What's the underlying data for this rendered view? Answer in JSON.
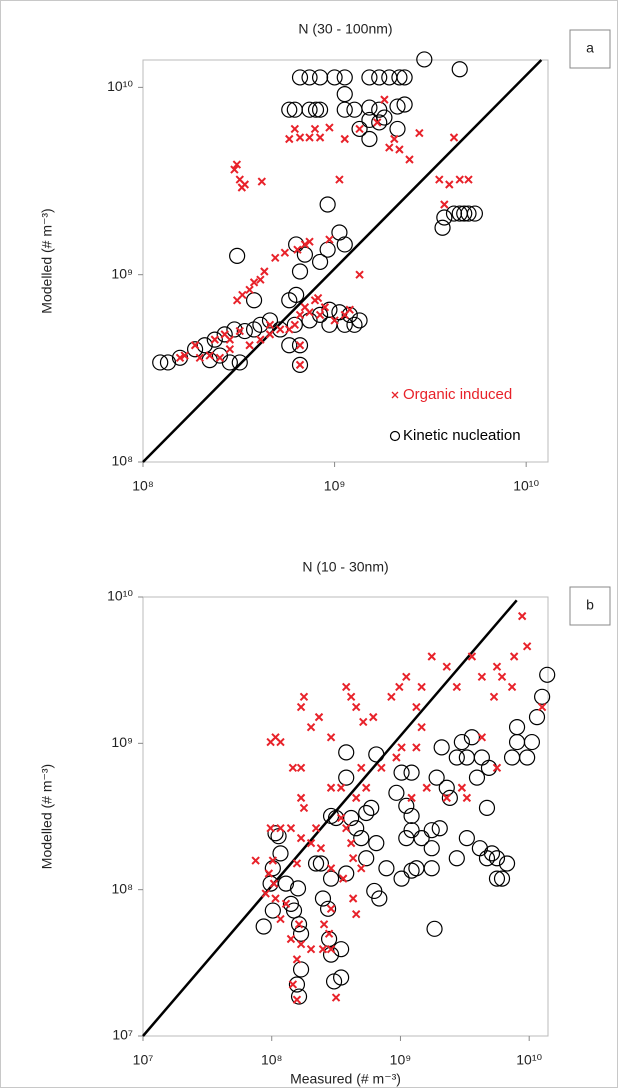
{
  "chart_data": [
    {
      "type": "scatter",
      "title": "N (30 - 100nm)",
      "panel_label": "a",
      "ylabel": "Modelled (# m⁻³)",
      "log_x": true,
      "log_y": true,
      "grid": false,
      "legend": "lower right",
      "xlim": [
        100000000,
        13000000000
      ],
      "ylim": [
        100000000,
        14000000000
      ],
      "xticks": [
        {
          "value": 100000000,
          "label": "10⁸"
        },
        {
          "value": 1000000000,
          "label": "10⁹"
        },
        {
          "value": 10000000000,
          "label": "10¹⁰"
        }
      ],
      "yticks": [
        {
          "value": 100000000,
          "label": "10⁸"
        },
        {
          "value": 1000000000,
          "label": "10⁹"
        },
        {
          "value": 10000000000,
          "label": "10¹⁰"
        }
      ],
      "reference_line": {
        "x": [
          100000000,
          12000000000
        ],
        "y": [
          100000000,
          14000000000
        ]
      },
      "series": [
        {
          "name": "Organic induced",
          "color": "#e8222a",
          "marker": "x",
          "x": [
            300000000.0,
            309000000.0,
            320000000.0,
            340000000.0,
            328000000.0,
            417000000.0,
            310000000.0,
            330000000.0,
            360000000.0,
            380000000.0,
            410000000.0,
            430000000.0,
            490000000.0,
            550000000.0,
            640000000.0,
            700000000.0,
            740000000.0,
            940000000.0,
            1350000000.0,
            660000000.0,
            740000000.0,
            840000000.0,
            580000000.0,
            620000000.0,
            790000000.0,
            940000000.0,
            1130000000.0,
            1350000000.0,
            1670000000.0,
            1820000000.0,
            2050000000.0,
            2180000000.0,
            1930000000.0,
            1060000000.0,
            2460000000.0,
            2770000000.0,
            4200000000.0,
            3520000000.0,
            3740000000.0,
            3970000000.0,
            4500000000.0,
            5000000000.0,
            237000000.0,
            267000000.0,
            284000000.0,
            320000000.0,
            360000000.0,
            410000000.0,
            460000000.0,
            520000000.0,
            580000000.0,
            620000000.0,
            660000000.0,
            700000000.0,
            740000000.0,
            840000000.0,
            1000000000.0,
            284000000.0,
            252000000.0,
            198000000.0,
            156000000.0,
            165000000.0,
            187000000.0,
            460000000.0,
            660000000.0,
            790000000.0,
            820000000.0,
            890000000.0,
            1130000000.0,
            1200000000.0,
            223000000.0,
            660000000.0
          ],
          "y": [
            3640000000.0,
            3870000000.0,
            3220000000.0,
            3030000000.0,
            2920000000.0,
            3140000000.0,
            730000000.0,
            780000000.0,
            830000000.0,
            910000000.0,
            940000000.0,
            1040000000.0,
            1230000000.0,
            1310000000.0,
            1360000000.0,
            1450000000.0,
            1500000000.0,
            1540000000.0,
            1000000000.0,
            5400000000.0,
            5400000000.0,
            5400000000.0,
            5300000000.0,
            6000000000.0,
            6000000000.0,
            6100000000.0,
            5300000000.0,
            6000000000.0,
            6500000000.0,
            8600000000.0,
            5300000000.0,
            4660000000.0,
            4770000000.0,
            3220000000.0,
            4120000000.0,
            5700000000.0,
            5400000000.0,
            3220000000.0,
            2370000000.0,
            3030000000.0,
            3220000000.0,
            3220000000.0,
            450000000.0,
            480000000.0,
            450000000.0,
            500000000.0,
            420000000.0,
            450000000.0,
            480000000.0,
            510000000.0,
            510000000.0,
            540000000.0,
            610000000.0,
            670000000.0,
            630000000.0,
            610000000.0,
            570000000.0,
            400000000.0,
            360000000.0,
            360000000.0,
            360000000.0,
            370000000.0,
            420000000.0,
            540000000.0,
            420000000.0,
            730000000.0,
            750000000.0,
            670000000.0,
            610000000.0,
            650000000.0,
            370000000.0,
            330000000.0
          ]
        },
        {
          "name": "Kinetic nucleation",
          "color": "#000000",
          "marker": "circle",
          "x": [
            123000000.0,
            135000000.0,
            156000000.0,
            187000000.0,
            210000000.0,
            237000000.0,
            252000000.0,
            284000000.0,
            320000000.0,
            223000000.0,
            267000000.0,
            300000000.0,
            340000000.0,
            380000000.0,
            410000000.0,
            460000000.0,
            520000000.0,
            580000000.0,
            660000000.0,
            620000000.0,
            740000000.0,
            840000000.0,
            940000000.0,
            1060000000.0,
            1200000000.0,
            1350000000.0,
            1270000000.0,
            1130000000.0,
            940000000.0,
            580000000.0,
            630000000.0,
            660000000.0,
            630000000.0,
            700000000.0,
            840000000.0,
            920000000.0,
            1060000000.0,
            1130000000.0,
            310000000.0,
            380000000.0,
            660000000.0,
            920000000.0,
            660000000.0,
            740000000.0,
            840000000.0,
            1000000000.0,
            1130000000.0,
            1520000000.0,
            1710000000.0,
            1930000000.0,
            2180000000.0,
            2320000000.0,
            580000000.0,
            620000000.0,
            740000000.0,
            800000000.0,
            840000000.0,
            1130000000.0,
            1520000000.0,
            1710000000.0,
            2130000000.0,
            1130000000.0,
            1270000000.0,
            1710000000.0,
            1820000000.0,
            2130000000.0,
            1520000000.0,
            1350000000.0,
            1520000000.0,
            2940000000.0,
            4500000000.0,
            3740000000.0,
            3660000000.0,
            4200000000.0,
            4500000000.0,
            4750000000.0,
            5000000000.0,
            5400000000.0,
            2320000000.0
          ],
          "y": [
            340000000.0,
            340000000.0,
            360000000.0,
            400000000.0,
            420000000.0,
            450000000.0,
            370000000.0,
            340000000.0,
            340000000.0,
            350000000.0,
            480000000.0,
            510000000.0,
            500000000.0,
            510000000.0,
            540000000.0,
            570000000.0,
            510000000.0,
            420000000.0,
            420000000.0,
            540000000.0,
            570000000.0,
            610000000.0,
            650000000.0,
            630000000.0,
            610000000.0,
            570000000.0,
            540000000.0,
            540000000.0,
            540000000.0,
            730000000.0,
            780000000.0,
            1040000000.0,
            1450000000.0,
            1280000000.0,
            1170000000.0,
            1360000000.0,
            1680000000.0,
            1450000000.0,
            1260000000.0,
            730000000.0,
            330000000.0,
            2370000000.0,
            11300000000.0,
            11300000000.0,
            11300000000.0,
            11300000000.0,
            11300000000.0,
            11300000000.0,
            11300000000.0,
            11300000000.0,
            11300000000.0,
            11300000000.0,
            7600000000.0,
            7600000000.0,
            7600000000.0,
            7600000000.0,
            7600000000.0,
            9200000000.0,
            7800000000.0,
            7600000000.0,
            7900000000.0,
            7600000000.0,
            7600000000.0,
            6500000000.0,
            6900000000.0,
            6000000000.0,
            5300000000.0,
            6000000000.0,
            6700000000.0,
            14100000000.0,
            12500000000.0,
            2020000000.0,
            1780000000.0,
            2120000000.0,
            2120000000.0,
            2120000000.0,
            2120000000.0,
            2120000000.0,
            8100000000.0
          ]
        }
      ]
    },
    {
      "type": "scatter",
      "title": "N (10 - 30nm)",
      "panel_label": "b",
      "ylabel": "Modelled (# m⁻³)",
      "xlabel": "Measured (# m⁻³)",
      "log_x": true,
      "log_y": true,
      "grid": false,
      "xlim": [
        10000000,
        14000000000
      ],
      "ylim": [
        10000000,
        10000000000
      ],
      "xticks": [
        {
          "value": 10000000,
          "label": "10⁷"
        },
        {
          "value": 100000000,
          "label": "10⁸"
        },
        {
          "value": 1000000000,
          "label": "10⁹"
        },
        {
          "value": 10000000000,
          "label": "10¹⁰"
        }
      ],
      "yticks": [
        {
          "value": 10000000,
          "label": "10⁷"
        },
        {
          "value": 100000000,
          "label": "10⁸"
        },
        {
          "value": 1000000000,
          "label": "10⁹"
        },
        {
          "value": 10000000000,
          "label": "10¹⁰"
        }
      ],
      "reference_line": {
        "x": [
          10000000,
          8000000000
        ],
        "y": [
          10000000,
          9500000000
        ]
      },
      "series": [
        {
          "color": "#e8222a",
          "marker": "x",
          "x": [
            89800000.0,
            95000000.0,
            102000000.0,
            104000000.0,
            107000000.0,
            117000000.0,
            129000000.0,
            141000000.0,
            157000000.0,
            169000000.0,
            163000000.0,
            157000000.0,
            146000000.0,
            202000000.0,
            250000000.0,
            289000000.0,
            279000000.0,
            289000000.0,
            255000000.0,
            316000000.0,
            98000000.0,
            107000000.0,
            117000000.0,
            146000000.0,
            169000000.0,
            169000000.0,
            178000000.0,
            202000000.0,
            233000000.0,
            289000000.0,
            379000000.0,
            414000000.0,
            453000000.0,
            514000000.0,
            615000000.0,
            850000000.0,
            980000000.0,
            1110000000.0,
            1330000000.0,
            1460000000.0,
            1750000000.0,
            2290000000.0,
            2740000000.0,
            3590000000.0,
            4290000000.0,
            5330000000.0,
            6150000000.0,
            7640000000.0,
            9640000000.0,
            8820000000.0,
            5620000000.0,
            7360000000.0,
            5620000000.0,
            4290000000.0,
            3280000000.0,
            2290000000.0,
            3000000000.0,
            1600000000.0,
            1220000000.0,
            1460000000.0,
            1330000000.0,
            1020000000.0,
            930000000.0,
            711000000.0,
            542000000.0,
            453000000.0,
            496000000.0,
            346000000.0,
            289000000.0,
            169000000.0,
            178000000.0,
            221000000.0,
            169000000.0,
            157000000.0,
            202000000.0,
            241000000.0,
            346000000.0,
            379000000.0,
            414000000.0,
            429000000.0,
            359000000.0,
            429000000.0,
            453000000.0,
            496000000.0,
            289000000.0,
            141000000.0,
            117000000.0,
            98000000.0,
            75000000.0,
            12600000000.0
          ],
          "y": [
            94000000.0,
            129000000.0,
            158000000.0,
            110000000.0,
            87000000.0,
            63000000.0,
            80000000.0,
            46000000.0,
            33400000.0,
            42400000.0,
            58000000.0,
            17700000.0,
            22500000.0,
            39200000.0,
            39200000.0,
            39200000.0,
            50000000.0,
            74000000.0,
            58000000.0,
            18300000.0,
            1020000000.0,
            1100000000.0,
            1020000000.0,
            680000000.0,
            680000000.0,
            1770000000.0,
            2080000000.0,
            1290000000.0,
            1510000000.0,
            1100000000.0,
            2430000000.0,
            2080000000.0,
            1770000000.0,
            1400000000.0,
            1510000000.0,
            2080000000.0,
            2430000000.0,
            2850000000.0,
            1770000000.0,
            2430000000.0,
            3920000000.0,
            3340000000.0,
            2430000000.0,
            3920000000.0,
            2850000000.0,
            2080000000.0,
            2850000000.0,
            3920000000.0,
            4600000000.0,
            7400000000.0,
            3340000000.0,
            2430000000.0,
            680000000.0,
            1100000000.0,
            424000000.0,
            424000000.0,
            497000000.0,
            497000000.0,
            424000000.0,
            1290000000.0,
            938000000.0,
            938000000.0,
            800000000.0,
            680000000.0,
            497000000.0,
            424000000.0,
            680000000.0,
            497000000.0,
            497000000.0,
            424000000.0,
            362000000.0,
            263000000.0,
            225000000.0,
            151000000.0,
            208000000.0,
            192000000.0,
            309000000.0,
            263000000.0,
            208000000.0,
            164000000.0,
            119000000.0,
            87000000.0,
            68000000.0,
            140000000.0,
            140000000.0,
            263000000.0,
            263000000.0,
            263000000.0,
            158000000.0,
            1770000000.0
          ]
        },
        {
          "color": "#000000",
          "marker": "circle",
          "x": [
            86600000.0,
            102000000.0,
            107000000.0,
            113000000.0,
            102000000.0,
            117000000.0,
            98000000.0,
            129000000.0,
            141000000.0,
            149000000.0,
            160000000.0,
            163000000.0,
            169000000.0,
            157000000.0,
            163000000.0,
            169000000.0,
            221000000.0,
            241000000.0,
            289000000.0,
            250000000.0,
            274000000.0,
            279000000.0,
            289000000.0,
            346000000.0,
            305000000.0,
            346000000.0,
            379000000.0,
            289000000.0,
            316000000.0,
            379000000.0,
            379000000.0,
            649000000.0,
            414000000.0,
            453000000.0,
            496000000.0,
            542000000.0,
            593000000.0,
            649000000.0,
            542000000.0,
            685000000.0,
            626000000.0,
            930000000.0,
            1020000000.0,
            1220000000.0,
            1110000000.0,
            1220000000.0,
            778000000.0,
            1020000000.0,
            1220000000.0,
            1110000000.0,
            1220000000.0,
            1460000000.0,
            1750000000.0,
            1330000000.0,
            1750000000.0,
            1750000000.0,
            1910000000.0,
            2090000000.0,
            2020000000.0,
            2290000000.0,
            2740000000.0,
            3000000000.0,
            3280000000.0,
            3590000000.0,
            3930000000.0,
            4290000000.0,
            4870000000.0,
            4140000000.0,
            4700000000.0,
            5140000000.0,
            5620000000.0,
            5620000000.0,
            6730000000.0,
            6150000000.0,
            4700000000.0,
            7360000000.0,
            8050000000.0,
            9640000000.0,
            8050000000.0,
            10500000000.0,
            11500000000.0,
            13800000000.0,
            12600000000.0,
            1840000000.0,
            2740000000.0,
            3280000000.0,
            2420000000.0
          ],
          "y": [
            56000000.0,
            72000000.0,
            243000000.0,
            232000000.0,
            140000000.0,
            177000000.0,
            110000000.0,
            110000000.0,
            80000000.0,
            72000000.0,
            102000000.0,
            58000000.0,
            50000000.0,
            22500000.0,
            18600000.0,
            28500000.0,
            151000000.0,
            151000000.0,
            119000000.0,
            87000000.0,
            74000000.0,
            46000000.0,
            36000000.0,
            25100000.0,
            23600000.0,
            39200000.0,
            129000000.0,
            319000000.0,
            309000000.0,
            583000000.0,
            867000000.0,
            840000000.0,
            309000000.0,
            263000000.0,
            225000000.0,
            334000000.0,
            362000000.0,
            208000000.0,
            164000000.0,
            87000000.0,
            98000000.0,
            459000000.0,
            631000000.0,
            631000000.0,
            374000000.0,
            319000000.0,
            140000000.0,
            119000000.0,
            135000000.0,
            225000000.0,
            255000000.0,
            225000000.0,
            255000000.0,
            140000000.0,
            192000000.0,
            140000000.0,
            583000000.0,
            938000000.0,
            263000000.0,
            497000000.0,
            800000000.0,
            1020000000.0,
            800000000.0,
            1100000000.0,
            583000000.0,
            800000000.0,
            680000000.0,
            192000000.0,
            164000000.0,
            177000000.0,
            119000000.0,
            164000000.0,
            151000000.0,
            119000000.0,
            362000000.0,
            800000000.0,
            1020000000.0,
            800000000.0,
            1290000000.0,
            1020000000.0,
            1510000000.0,
            2940000000.0,
            2080000000.0,
            54000000.0,
            164000000.0,
            225000000.0,
            424000000.0
          ]
        }
      ]
    }
  ]
}
